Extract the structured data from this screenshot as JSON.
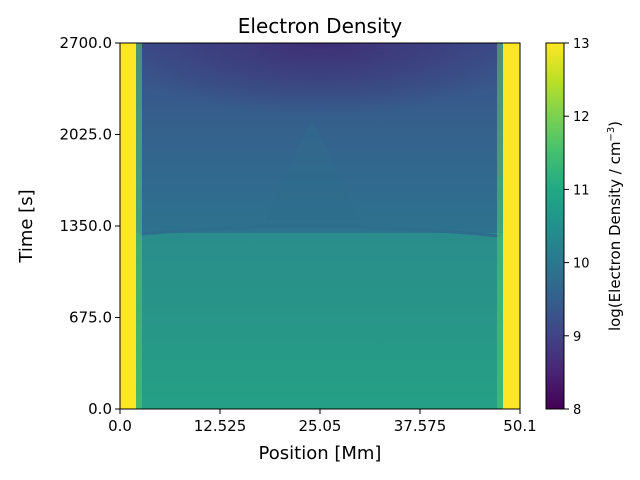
{
  "chart_data": {
    "type": "heatmap",
    "title": "Electron Density",
    "xlabel": "Position [Mm]",
    "ylabel": "Time [s]",
    "xlim": [
      0.0,
      50.1
    ],
    "ylim": [
      0.0,
      2700.0
    ],
    "x_ticks": [
      "0.0",
      "12.525",
      "25.05",
      "37.575",
      "50.1"
    ],
    "x_tick_values": [
      0.0,
      12.525,
      25.05,
      37.575,
      50.1
    ],
    "y_ticks": [
      "0.0",
      "675.0",
      "1350.0",
      "2025.0",
      "2700.0"
    ],
    "y_tick_values": [
      0.0,
      675.0,
      1350.0,
      2025.0,
      2700.0
    ],
    "colorbar": {
      "label_prefix": "log(Electron Density / cm",
      "label_exponent": "−3",
      "label_suffix": ")",
      "range": [
        8,
        13
      ],
      "ticks": [
        "8",
        "9",
        "10",
        "11",
        "12",
        "13"
      ],
      "tick_values": [
        8,
        9,
        10,
        11,
        12,
        13
      ],
      "colormap": "viridis"
    },
    "regions": {
      "chromosphere_value": 13.0,
      "footpoint_extent_mm": [
        2.2,
        47.9
      ],
      "boundary_time_s": 1340,
      "early_corona_value": 10.7,
      "late_corona_top_value": 9.2,
      "late_corona_mid_value": 9.9
    }
  }
}
